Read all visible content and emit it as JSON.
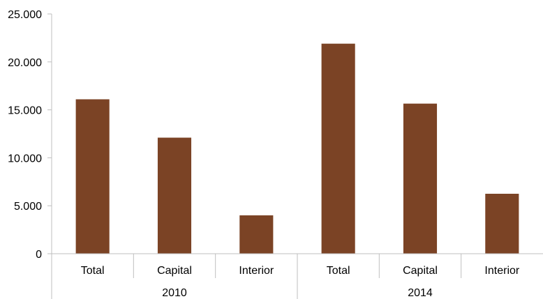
{
  "chart_data": {
    "type": "bar",
    "title": "",
    "xlabel": "",
    "ylabel": "",
    "ylim": [
      0,
      25000
    ],
    "y_ticks": [
      {
        "value": 0,
        "label": "0"
      },
      {
        "value": 5000,
        "label": "5.000"
      },
      {
        "value": 10000,
        "label": "10.000"
      },
      {
        "value": 15000,
        "label": "15.000"
      },
      {
        "value": 20000,
        "label": "20.000"
      },
      {
        "value": 25000,
        "label": "25.000"
      }
    ],
    "groups": [
      {
        "label": "2010",
        "categories": [
          "Total",
          "Capital",
          "Interior"
        ],
        "values": [
          16100,
          12100,
          4000
        ]
      },
      {
        "label": "2014",
        "categories": [
          "Total",
          "Capital",
          "Interior"
        ],
        "values": [
          21900,
          15650,
          6250
        ]
      }
    ],
    "bar_color": "#7b4325",
    "grid": false,
    "legend": "none"
  }
}
